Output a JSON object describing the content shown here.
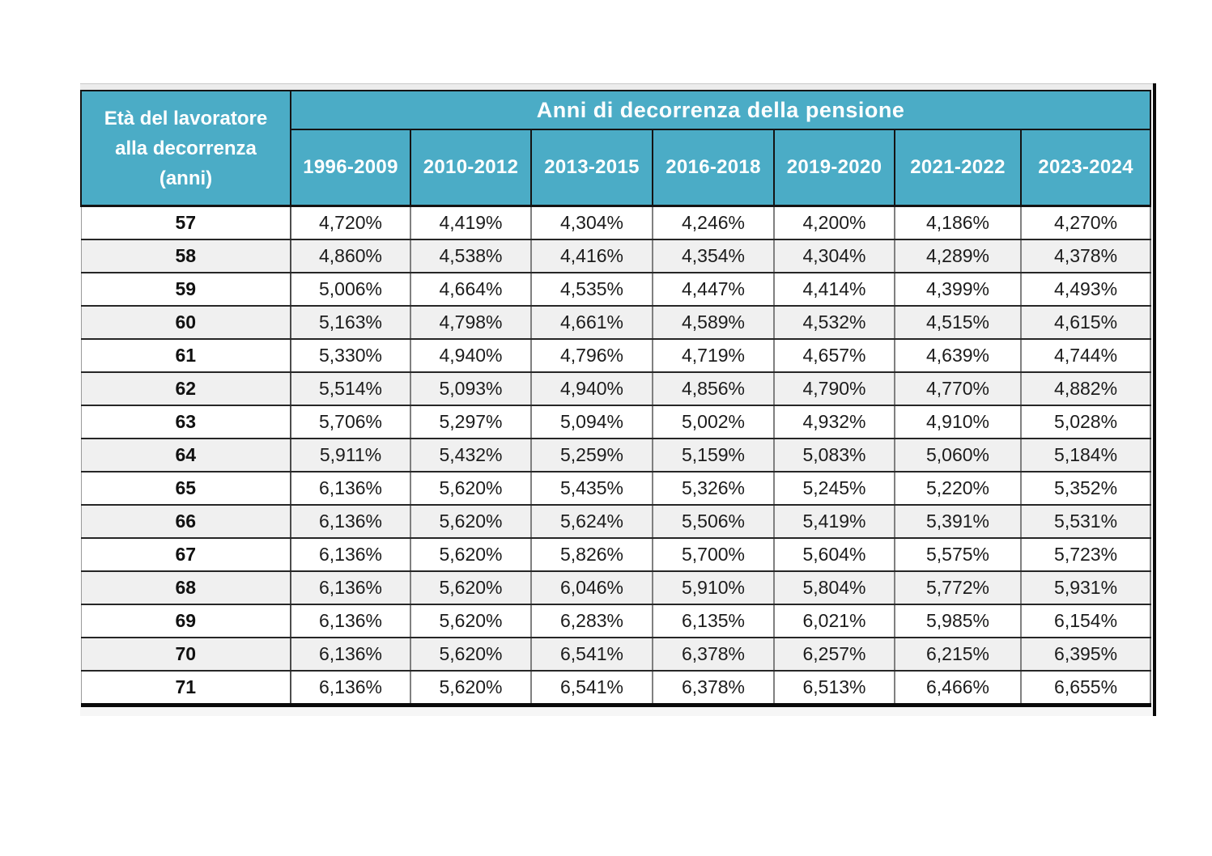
{
  "colors": {
    "header_bg": "#4BACC6",
    "header_text": "#FFFFFF",
    "row_alt_bg": "#F0F0F0",
    "row_bg": "#FFFFFF",
    "grid_dark": "#262626",
    "grid_gray": "#808080",
    "outer_border": "#0A0A0A"
  },
  "chart_data": {
    "type": "table",
    "title": "Anni di decorrenza della pensione",
    "row_header_label": "Età del lavoratore alla decorrenza (anni)",
    "corner_lines": [
      "Età del lavoratore",
      "alla decorrenza",
      "(anni)"
    ],
    "columns": [
      "1996-2009",
      "2010-2012",
      "2013-2015",
      "2016-2018",
      "2019-2020",
      "2021-2022",
      "2023-2024"
    ],
    "rows": [
      {
        "age": "57",
        "values": [
          "4,720%",
          "4,419%",
          "4,304%",
          "4,246%",
          "4,200%",
          "4,186%",
          "4,270%"
        ]
      },
      {
        "age": "58",
        "values": [
          "4,860%",
          "4,538%",
          "4,416%",
          "4,354%",
          "4,304%",
          "4,289%",
          "4,378%"
        ]
      },
      {
        "age": "59",
        "values": [
          "5,006%",
          "4,664%",
          "4,535%",
          "4,447%",
          "4,414%",
          "4,399%",
          "4,493%"
        ]
      },
      {
        "age": "60",
        "values": [
          "5,163%",
          "4,798%",
          "4,661%",
          "4,589%",
          "4,532%",
          "4,515%",
          "4,615%"
        ]
      },
      {
        "age": "61",
        "values": [
          "5,330%",
          "4,940%",
          "4,796%",
          "4,719%",
          "4,657%",
          "4,639%",
          "4,744%"
        ]
      },
      {
        "age": "62",
        "values": [
          "5,514%",
          "5,093%",
          "4,940%",
          "4,856%",
          "4,790%",
          "4,770%",
          "4,882%"
        ]
      },
      {
        "age": "63",
        "values": [
          "5,706%",
          "5,297%",
          "5,094%",
          "5,002%",
          "4,932%",
          "4,910%",
          "5,028%"
        ]
      },
      {
        "age": "64",
        "values": [
          "5,911%",
          "5,432%",
          "5,259%",
          "5,159%",
          "5,083%",
          "5,060%",
          "5,184%"
        ]
      },
      {
        "age": "65",
        "values": [
          "6,136%",
          "5,620%",
          "5,435%",
          "5,326%",
          "5,245%",
          "5,220%",
          "5,352%"
        ]
      },
      {
        "age": "66",
        "values": [
          "6,136%",
          "5,620%",
          "5,624%",
          "5,506%",
          "5,419%",
          "5,391%",
          "5,531%"
        ]
      },
      {
        "age": "67",
        "values": [
          "6,136%",
          "5,620%",
          "5,826%",
          "5,700%",
          "5,604%",
          "5,575%",
          "5,723%"
        ]
      },
      {
        "age": "68",
        "values": [
          "6,136%",
          "5,620%",
          "6,046%",
          "5,910%",
          "5,804%",
          "5,772%",
          "5,931%"
        ]
      },
      {
        "age": "69",
        "values": [
          "6,136%",
          "5,620%",
          "6,283%",
          "6,135%",
          "6,021%",
          "5,985%",
          "6,154%"
        ]
      },
      {
        "age": "70",
        "values": [
          "6,136%",
          "5,620%",
          "6,541%",
          "6,378%",
          "6,257%",
          "6,215%",
          "6,395%"
        ]
      },
      {
        "age": "71",
        "values": [
          "6,136%",
          "5,620%",
          "6,541%",
          "6,378%",
          "6,513%",
          "6,466%",
          "6,655%"
        ]
      }
    ]
  }
}
